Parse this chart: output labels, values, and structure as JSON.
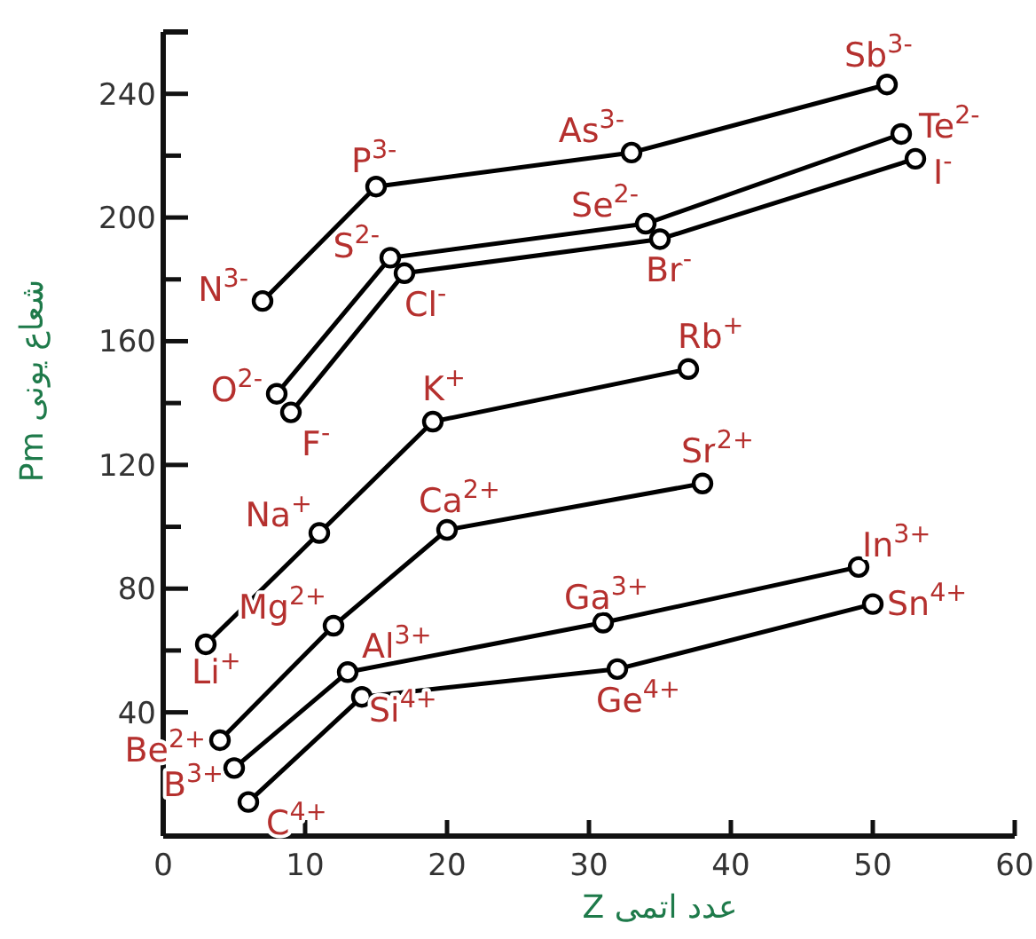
{
  "chart_data": {
    "type": "line",
    "marker": "circle",
    "xlabel": "عدد اتمی Z",
    "ylabel": "شعاع یونی Pm",
    "xlim": [
      0,
      60
    ],
    "ylim": [
      0,
      260
    ],
    "xticks": [
      0,
      10,
      20,
      30,
      40,
      50,
      60
    ],
    "yticks": [
      {
        "value": 20,
        "label": null
      },
      40,
      {
        "value": 60,
        "label": null
      },
      80,
      {
        "value": 100,
        "label": null
      },
      120,
      {
        "value": 140,
        "label": null
      },
      160,
      {
        "value": 180,
        "label": null
      },
      200,
      {
        "value": 220,
        "label": null
      },
      240
    ],
    "series": [
      {
        "color": "#000000",
        "x": [
          3,
          11,
          19,
          37
        ],
        "values": [
          62,
          98,
          134,
          151
        ]
      },
      {
        "color": "#000000",
        "x": [
          4,
          12,
          20,
          38
        ],
        "values": [
          31,
          68,
          99,
          114
        ]
      },
      {
        "color": "#000000",
        "x": [
          5,
          13,
          31,
          49
        ],
        "values": [
          22,
          53,
          69,
          87
        ]
      },
      {
        "color": "#000000",
        "x": [
          6,
          14,
          32,
          50
        ],
        "values": [
          11,
          45,
          54,
          75
        ]
      },
      {
        "color": "#000000",
        "x": [
          7,
          15,
          33,
          51
        ],
        "values": [
          173,
          210,
          221,
          243
        ]
      },
      {
        "color": "#000000",
        "x": [
          8,
          16,
          34,
          52
        ],
        "values": [
          143,
          187,
          198,
          227
        ]
      },
      {
        "color": "#000000",
        "x": [
          9,
          17,
          35,
          53
        ],
        "values": [
          137,
          182,
          193,
          219
        ]
      }
    ],
    "annotations": [
      {
        "text": "Li$^{+}$",
        "x": 3,
        "y": 62
      },
      {
        "text": "Na$^{+}$",
        "x": 11,
        "y": 98
      },
      {
        "text": "K$^{+}$",
        "x": 19,
        "y": 134
      },
      {
        "text": "Rb$^{+}$",
        "x": 37,
        "y": 151
      },
      {
        "text": "Be$^{2+}$",
        "x": 4,
        "y": 31
      },
      {
        "text": "Mg$^{2+}$",
        "x": 12,
        "y": 68
      },
      {
        "text": "Ca$^{2+}$",
        "x": 20,
        "y": 99
      },
      {
        "text": "Sr$^{2+}$",
        "x": 38,
        "y": 114
      },
      {
        "text": "B$^{3+}$",
        "x": 5,
        "y": 22
      },
      {
        "text": "Al$^{3+}$",
        "x": 13,
        "y": 53
      },
      {
        "text": "Ga$^{3+}$",
        "x": 31,
        "y": 69
      },
      {
        "text": "In$^{3+}$",
        "x": 49,
        "y": 87
      },
      {
        "text": "C$^{4+}$",
        "x": 6,
        "y": 11
      },
      {
        "text": "Si$^{4+}$",
        "x": 14,
        "y": 45
      },
      {
        "text": "Ge$^{4+}$",
        "x": 32,
        "y": 54
      },
      {
        "text": "Sn$^{4+}$",
        "x": 50,
        "y": 75
      },
      {
        "text": "N$^{3-}$",
        "x": 7,
        "y": 173
      },
      {
        "text": "P$^{3-}$",
        "x": 15,
        "y": 210
      },
      {
        "text": "As$^{3-}$",
        "x": 33,
        "y": 221
      },
      {
        "text": "Sb$^{3-}$",
        "x": 51,
        "y": 243
      },
      {
        "text": "O$^{2-}$",
        "x": 8,
        "y": 143
      },
      {
        "text": "S$^{2-}$",
        "x": 16,
        "y": 187
      },
      {
        "text": "Se$^{2-}$",
        "x": 34,
        "y": 198
      },
      {
        "text": "Te$^{2-}$",
        "x": 52,
        "y": 227
      },
      {
        "text": "F$^{-}$",
        "x": 9,
        "y": 137
      },
      {
        "text": "Cl$^{-}$",
        "x": 17,
        "y": 182
      },
      {
        "text": "Br$^{-}$",
        "x": 35,
        "y": 193
      },
      {
        "text": "I$^{-}$",
        "x": 53,
        "y": 219
      }
    ]
  }
}
